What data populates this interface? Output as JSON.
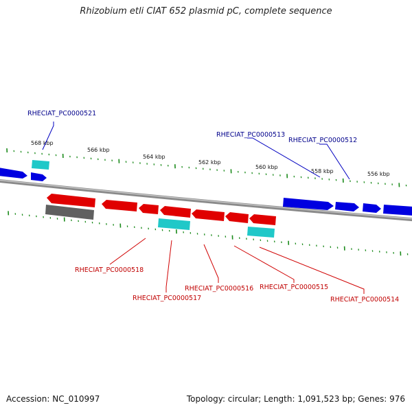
{
  "title": "Rhizobium etli CIAT 652 plasmid pC, complete sequence",
  "footer": {
    "accession": "Accession: NC_010997",
    "topology": "Topology: circular; Length: 1,091,523 bp; Genes: 976"
  },
  "scale_labels": [
    "568 kbp",
    "566 kbp",
    "564 kbp",
    "562 kbp",
    "560 kbp",
    "558 kbp",
    "556 kbp"
  ],
  "gene_labels": {
    "forward": [
      "RHECIAT_PC0000521",
      "RHECIAT_PC0000513",
      "RHECIAT_PC0000512"
    ],
    "reverse": [
      "RHECIAT_PC0000518",
      "RHECIAT_PC0000517",
      "RHECIAT_PC0000516",
      "RHECIAT_PC0000515",
      "RHECIAT_PC0000514"
    ]
  },
  "colors": {
    "forward_cds": "#0000e0",
    "reverse_cds": "#e00000",
    "rna": "#20c8c8",
    "pseudo": "#606060",
    "backbone": "#8a8a8a",
    "ticks": "#1a8a1a",
    "forward_label": "#00008b",
    "reverse_label": "#c00000"
  }
}
